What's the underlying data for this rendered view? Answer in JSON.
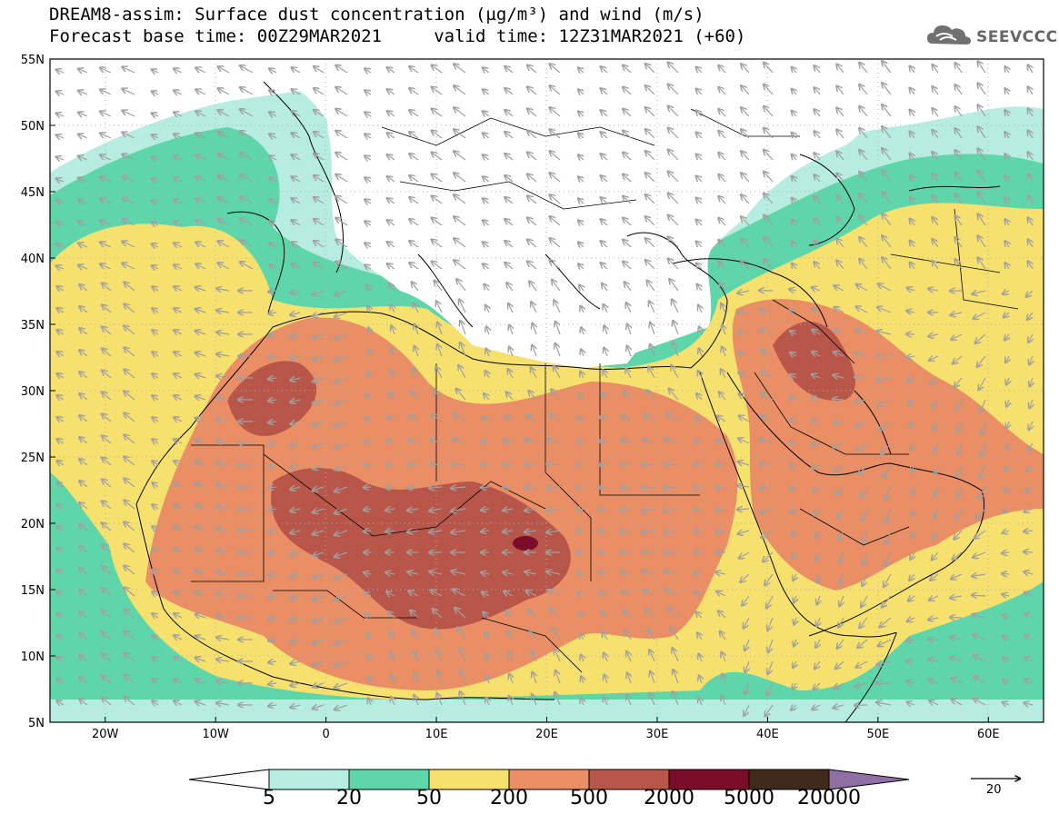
{
  "title_line1": "DREAM8-assim: Surface dust concentration (µg/m³) and wind (m/s)",
  "title_line2": "Forecast base time: 00Z29MAR2021     valid time: 12Z31MAR2021 (+60)",
  "logo": {
    "text": "SEEVCCC",
    "icon": "cloud-icon",
    "color": "#666666"
  },
  "latitude_labels": [
    "55N",
    "50N",
    "45N",
    "40N",
    "35N",
    "30N",
    "25N",
    "20N",
    "15N",
    "10N",
    "5N"
  ],
  "longitude_labels": [
    "20W",
    "10W",
    "0",
    "10E",
    "20E",
    "30E",
    "40E",
    "50E",
    "60E"
  ],
  "map_extent": {
    "lon_min": -25,
    "lon_max": 65,
    "lat_min": 5,
    "lat_max": 55
  },
  "colorbar": {
    "labels": [
      "5",
      "20",
      "50",
      "200",
      "500",
      "2000",
      "5000",
      "20000"
    ],
    "colors": [
      "#ffffff",
      "#b7ede0",
      "#5fd6a9",
      "#f6e16f",
      "#ea8e65",
      "#b9564a",
      "#7b0d2a",
      "#3f2a1b",
      "#8f6fa4"
    ]
  },
  "wind_reference": {
    "value": "20",
    "unit_arrow": "reference-arrow"
  },
  "colors": {
    "ocean_bg": "#ffffff",
    "dust_5": "#b7ede0",
    "dust_20": "#5fd6a9",
    "dust_50": "#f6e16f",
    "dust_200": "#ea8e65",
    "dust_500": "#b9564a",
    "dust_2000": "#7b0d2a",
    "arrows": "#a0a0a0"
  }
}
